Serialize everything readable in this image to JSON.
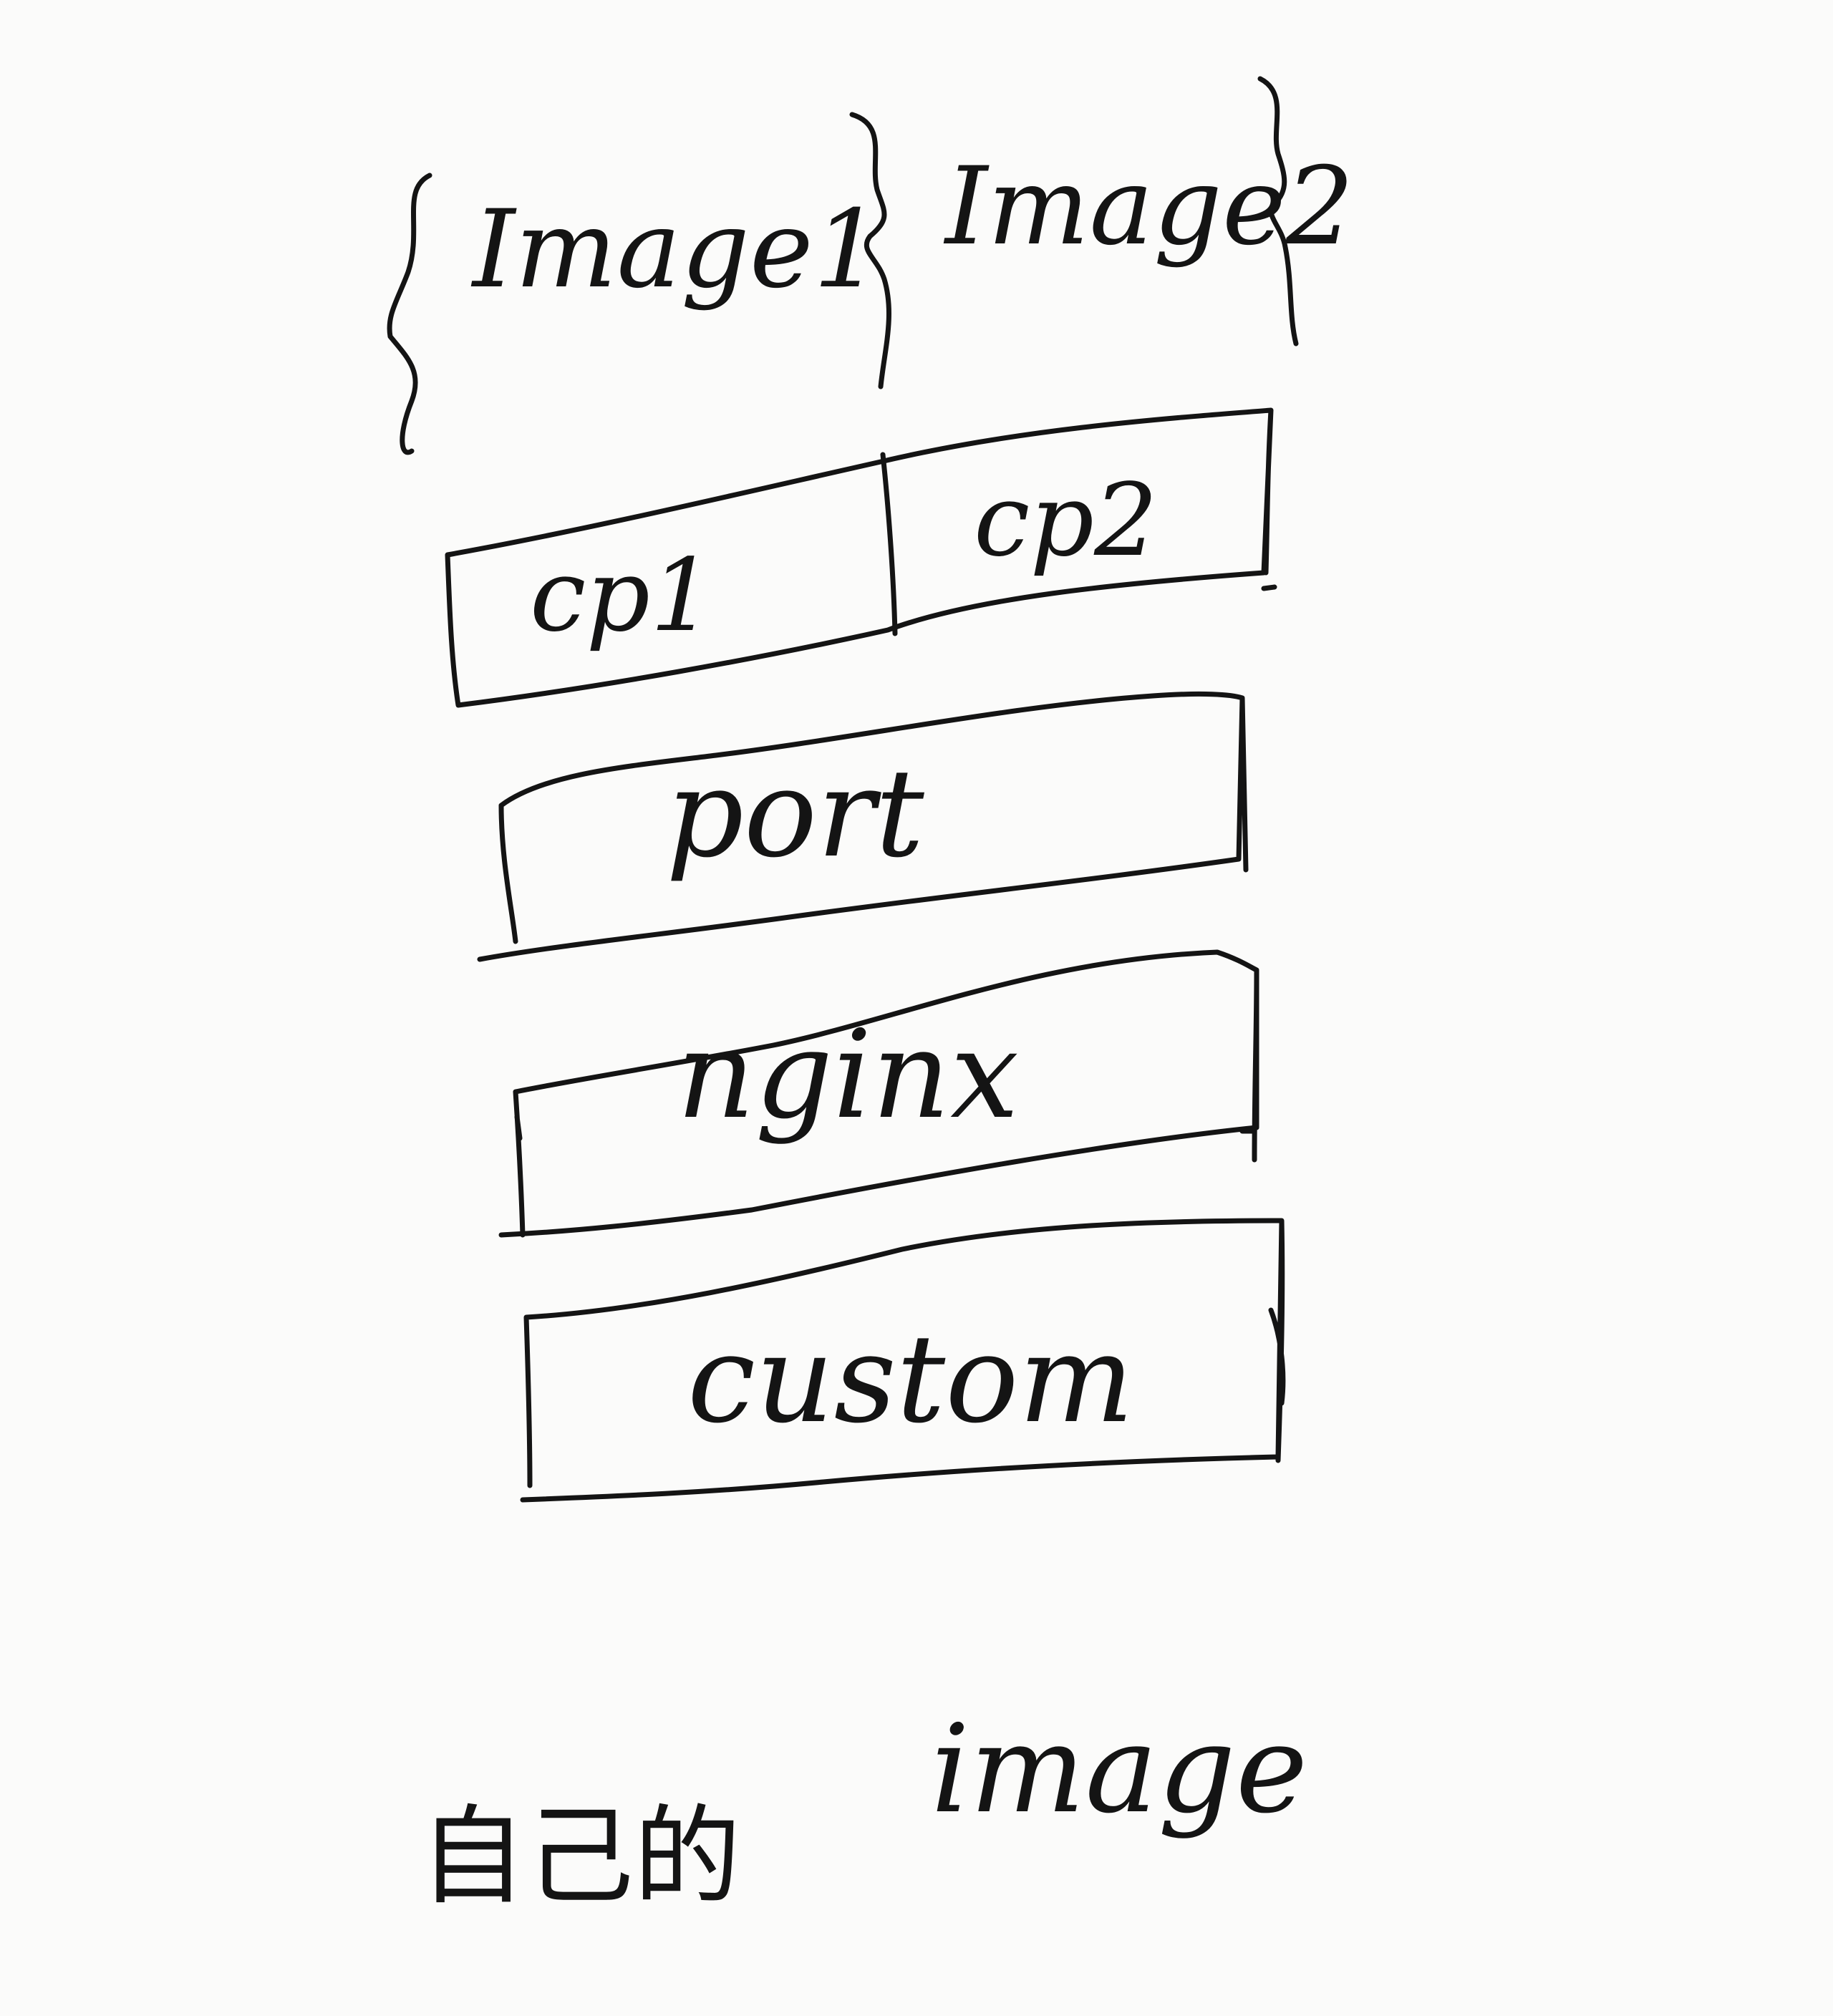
{
  "images": [
    {
      "label": "Image1"
    },
    {
      "label": "Image2"
    }
  ],
  "layers": {
    "top": {
      "cells": [
        "cp1",
        "cp2"
      ]
    },
    "port": {
      "label": "port"
    },
    "nginx": {
      "label": "nginx"
    },
    "custom": {
      "label": "custom"
    }
  },
  "caption": {
    "cjk": "自己的",
    "word": "image"
  },
  "colors": {
    "ink": "#141414",
    "paper": "#fbfbfa"
  }
}
